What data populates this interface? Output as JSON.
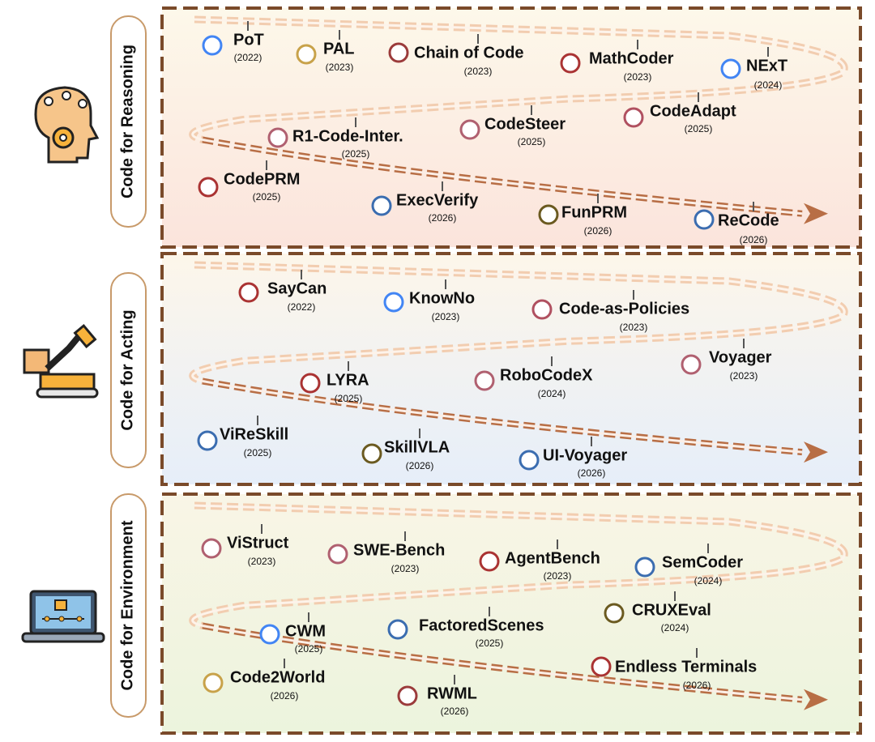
{
  "sections": [
    {
      "label": "Code for Reasoning",
      "items": [
        {
          "name": "PoT",
          "year": "(2022)"
        },
        {
          "name": "PAL",
          "year": "(2023)"
        },
        {
          "name": "Chain of Code",
          "year": "(2023)"
        },
        {
          "name": "MathCoder",
          "year": "(2023)"
        },
        {
          "name": "NExT",
          "year": "(2024)"
        },
        {
          "name": "CodeAdapt",
          "year": "(2025)"
        },
        {
          "name": "CodeSteer",
          "year": "(2025)"
        },
        {
          "name": "R1-Code-Inter.",
          "year": "(2025)"
        },
        {
          "name": "CodePRM",
          "year": "(2025)"
        },
        {
          "name": "ExecVerify",
          "year": "(2026)"
        },
        {
          "name": "FunPRM",
          "year": "(2026)"
        },
        {
          "name": "ReCode",
          "year": "(2026)"
        }
      ]
    },
    {
      "label": "Code for Acting",
      "items": [
        {
          "name": "SayCan",
          "year": "(2022)"
        },
        {
          "name": "KnowNo",
          "year": "(2023)"
        },
        {
          "name": "Code-as-Policies",
          "year": "(2023)"
        },
        {
          "name": "Voyager",
          "year": "(2023)"
        },
        {
          "name": "RoboCodeX",
          "year": "(2024)"
        },
        {
          "name": "LYRA",
          "year": "(2025)"
        },
        {
          "name": "ViReSkill",
          "year": "(2025)"
        },
        {
          "name": "SkillVLA",
          "year": "(2026)"
        },
        {
          "name": "UI-Voyager",
          "year": "(2026)"
        }
      ]
    },
    {
      "label": "Code for Environment",
      "items": [
        {
          "name": "ViStruct",
          "year": "(2023)"
        },
        {
          "name": "SWE-Bench",
          "year": "(2023)"
        },
        {
          "name": "AgentBench",
          "year": "(2023)"
        },
        {
          "name": "SemCoder",
          "year": "(2024)"
        },
        {
          "name": "CRUXEval",
          "year": "(2024)"
        },
        {
          "name": "FactoredScenes",
          "year": "(2025)"
        },
        {
          "name": "CWM",
          "year": "(2025)"
        },
        {
          "name": "Code2World",
          "year": "(2026)"
        },
        {
          "name": "RWML",
          "year": "(2026)"
        },
        {
          "name": "Endless Terminals",
          "year": "(2026)"
        }
      ]
    }
  ]
}
